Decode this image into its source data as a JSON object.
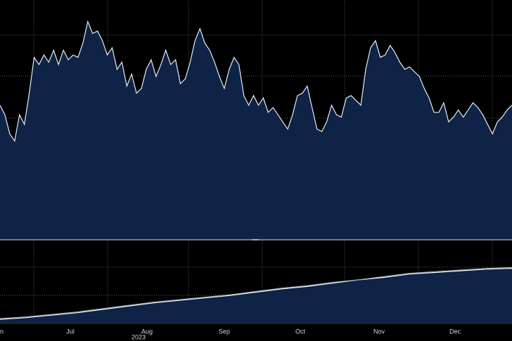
{
  "chart_data": [
    {
      "type": "area",
      "panel": "upper",
      "title": "",
      "xlabel": "",
      "ylabel": "",
      "ylim": [
        0,
        100
      ],
      "grid": true,
      "fill_color": "#0e2346",
      "line_color": "#e6ecf5",
      "x": [
        0,
        2,
        4,
        6,
        8,
        10,
        12,
        14,
        16,
        18,
        20,
        22,
        24,
        26,
        28,
        30,
        32,
        34,
        36,
        38,
        40,
        42,
        44,
        46,
        48,
        50,
        52,
        54,
        56,
        58,
        60,
        62,
        64,
        66,
        68,
        70,
        72,
        74,
        76,
        78,
        80,
        82,
        84,
        86,
        88,
        90,
        92,
        94,
        96,
        98,
        100,
        102,
        104,
        106,
        108,
        110,
        112,
        114,
        116,
        118,
        120,
        122,
        124,
        126,
        128,
        130,
        132,
        134,
        136,
        138,
        140,
        142,
        144,
        146,
        148,
        150,
        152,
        154,
        156,
        158,
        160,
        162,
        164,
        166,
        168,
        170,
        172,
        174,
        176,
        178,
        180,
        182,
        184,
        186,
        188,
        190,
        192,
        194,
        196,
        198,
        200,
        202,
        204,
        206,
        208,
        210
      ],
      "values": [
        56,
        52,
        44,
        41,
        52,
        48,
        61,
        76,
        73,
        77,
        74,
        79,
        73,
        79,
        75,
        77,
        76,
        82,
        91,
        86,
        87,
        83,
        77,
        80,
        71,
        74,
        64,
        69,
        61,
        63,
        71,
        75,
        68,
        73,
        79,
        73,
        75,
        65,
        67,
        74,
        83,
        88,
        82,
        79,
        74,
        68,
        63,
        71,
        76,
        73,
        60,
        56,
        60,
        56,
        59,
        53,
        55,
        52,
        49,
        46,
        52,
        60,
        61,
        64,
        55,
        46,
        45,
        49,
        56,
        52,
        51,
        59,
        60,
        58,
        56,
        71,
        80,
        83,
        76,
        77,
        81,
        78,
        74,
        71,
        72,
        70,
        68,
        63,
        59,
        53,
        53,
        57,
        49,
        51,
        54,
        51,
        54,
        57,
        55,
        52,
        48,
        44,
        49,
        51,
        54,
        56
      ]
    },
    {
      "type": "line",
      "panel": "lower",
      "title": "",
      "xlabel": "",
      "ylabel": "",
      "ylim": [
        0,
        100
      ],
      "grid": true,
      "series": [
        {
          "fill_color": "#0e2346",
          "line_color": "#ffffff",
          "values": [
            5,
            7,
            10,
            13,
            17,
            21,
            25,
            28,
            31,
            34,
            38,
            42,
            45,
            49,
            53,
            56,
            60,
            62,
            64,
            66,
            67
          ]
        },
        {
          "fill_color": "#0e2346",
          "line_color": "#9aa7bd",
          "values": [
            6,
            8,
            11,
            14,
            18,
            22,
            26,
            29,
            32,
            35,
            39,
            43,
            46,
            50,
            53,
            57,
            61,
            63,
            65,
            67,
            68
          ]
        }
      ]
    }
  ],
  "x_axis": {
    "months": [
      {
        "label": "n",
        "x": -3
      },
      {
        "label": "Jul",
        "x": 21
      },
      {
        "label": "Aug",
        "x": 44
      },
      {
        "label": "Sep",
        "x": 68
      },
      {
        "label": "Oct",
        "x": 92
      },
      {
        "label": "Nov",
        "x": 116
      },
      {
        "label": "Dec",
        "x": 140
      }
    ],
    "year_label": "2023",
    "year_x": 42
  },
  "colors": {
    "background": "#000000",
    "grid": "#5a5a5a",
    "fill": "#0e2346",
    "line": "#e6ecf5",
    "divider": "#777777",
    "text": "#d8d8d8"
  }
}
